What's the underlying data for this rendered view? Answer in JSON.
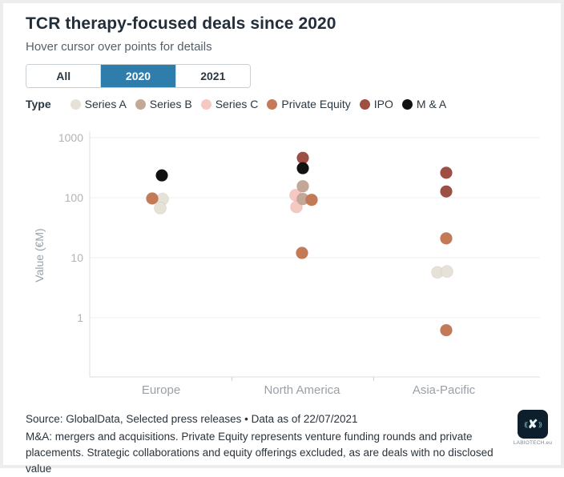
{
  "header": {
    "title": "TCR therapy-focused deals since 2020",
    "subtitle": "Hover cursor over points for details"
  },
  "tabs": [
    {
      "label": "All",
      "active": false
    },
    {
      "label": "2020",
      "active": true
    },
    {
      "label": "2021",
      "active": false
    }
  ],
  "tab_active_color": "#2e7dab",
  "legend": {
    "label": "Type",
    "items": [
      {
        "name": "Series A",
        "color": "#e7e2d7"
      },
      {
        "name": "Series B",
        "color": "#c3a797"
      },
      {
        "name": "Series C",
        "color": "#f6c8c2"
      },
      {
        "name": "Private Equity",
        "color": "#c57a57"
      },
      {
        "name": "IPO",
        "color": "#9d4f44"
      },
      {
        "name": "M & A",
        "color": "#111111"
      }
    ]
  },
  "chart_data": {
    "type": "scatter",
    "categories": [
      "Europe",
      "North America",
      "Asia-Pacific"
    ],
    "ylabel": "Value (€M)",
    "yscale": "log",
    "yticks": [
      1000,
      100,
      10,
      1
    ],
    "ylim": [
      0.1,
      1280
    ],
    "grid": true,
    "legend_position": "top",
    "series": [
      {
        "name": "Series C",
        "color": "#f6c8c2",
        "points": [
          {
            "category": "North America",
            "value": 110,
            "dx": -8
          },
          {
            "category": "North America",
            "value": 70,
            "dx": -7
          }
        ]
      },
      {
        "name": "Series A",
        "color": "#e7e2d7",
        "points": [
          {
            "category": "Europe",
            "value": 95,
            "dx": 2
          },
          {
            "category": "Europe",
            "value": 67,
            "dx": -1
          },
          {
            "category": "Asia-Pacific",
            "value": 5.7,
            "dx": -8
          },
          {
            "category": "Asia-Pacific",
            "value": 5.9,
            "dx": 4
          }
        ]
      },
      {
        "name": "Series B",
        "color": "#c3a797",
        "points": [
          {
            "category": "North America",
            "value": 155,
            "dx": 1
          },
          {
            "category": "North America",
            "value": 95,
            "dx": 1
          }
        ]
      },
      {
        "name": "Private Equity",
        "color": "#c57a57",
        "points": [
          {
            "category": "Europe",
            "value": 97,
            "dx": -11
          },
          {
            "category": "North America",
            "value": 92,
            "dx": 12
          },
          {
            "category": "North America",
            "value": 12,
            "dx": 0
          },
          {
            "category": "Asia-Pacific",
            "value": 21,
            "dx": 3
          },
          {
            "category": "Asia-Pacific",
            "value": 0.62,
            "dx": 3
          }
        ]
      },
      {
        "name": "IPO",
        "color": "#9d4f44",
        "points": [
          {
            "category": "North America",
            "value": 460,
            "dx": 1
          },
          {
            "category": "Asia-Pacific",
            "value": 260,
            "dx": 3
          },
          {
            "category": "Asia-Pacific",
            "value": 127,
            "dx": 3
          }
        ]
      },
      {
        "name": "M & A",
        "color": "#111111",
        "points": [
          {
            "category": "Europe",
            "value": 235,
            "dx": 1
          },
          {
            "category": "North America",
            "value": 310,
            "dx": 1
          }
        ]
      }
    ]
  },
  "footer": {
    "source_line": "Source: GlobalData, Selected press releases • Data as of 22/07/2021",
    "note_line": "M&A: mergers and acquisitions. Private Equity represents venture funding rounds and private placements. Strategic collaborations and equity offerings excluded, as are deals with no disclosed value",
    "logo_caption": "LABIOTECH.eu"
  }
}
